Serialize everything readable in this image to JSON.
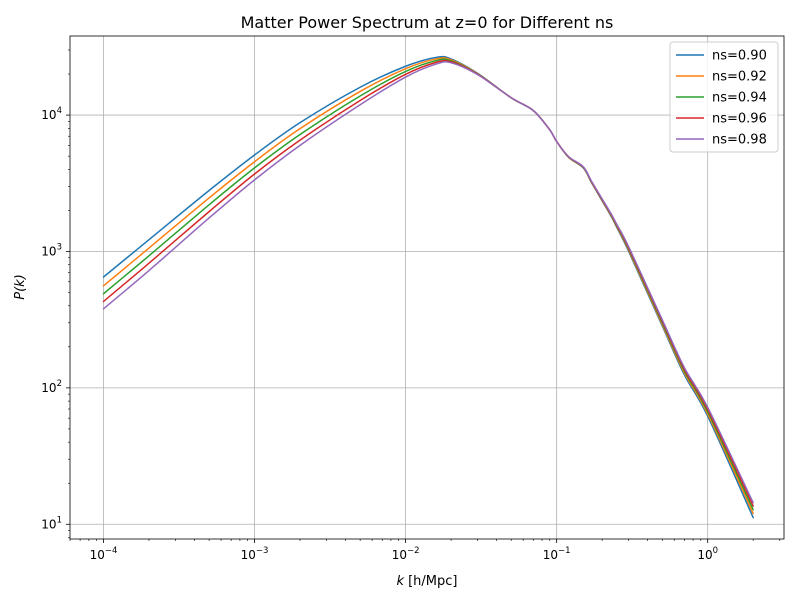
{
  "chart_data": {
    "type": "line",
    "title": "Matter Power Spectrum at z=0 for Different ns",
    "xlabel_italic": "k",
    "xlabel_rest": "[h/Mpc]",
    "ylabel": "P(k)",
    "xscale": "log",
    "yscale": "log",
    "xlim": [
      6e-05,
      3.2
    ],
    "ylim": [
      7.8,
      38000
    ],
    "grid": true,
    "legend_position": "top-right",
    "x_ticks": [
      {
        "value": 0.0001,
        "base": "10",
        "exp": "−4"
      },
      {
        "value": 0.001,
        "base": "10",
        "exp": "−3"
      },
      {
        "value": 0.01,
        "base": "10",
        "exp": "−2"
      },
      {
        "value": 0.1,
        "base": "10",
        "exp": "−1"
      },
      {
        "value": 1,
        "base": "10",
        "exp": "0"
      }
    ],
    "y_ticks": [
      {
        "value": 10,
        "base": "10",
        "exp": "1"
      },
      {
        "value": 100,
        "base": "10",
        "exp": "2"
      },
      {
        "value": 1000,
        "base": "10",
        "exp": "3"
      },
      {
        "value": 10000,
        "base": "10",
        "exp": "4"
      }
    ],
    "x": [
      0.0001,
      0.0002,
      0.0005,
      0.001,
      0.002,
      0.005,
      0.01,
      0.016,
      0.02,
      0.03,
      0.05,
      0.07,
      0.09,
      0.1,
      0.12,
      0.15,
      0.17,
      0.2,
      0.23,
      0.25,
      0.3,
      0.5,
      0.7,
      1.0,
      2.0
    ],
    "series": [
      {
        "name": "ns=0.90",
        "color": "#1f77b4",
        "values": [
          650,
          1220,
          2800,
          5100,
          8800,
          16000,
          22800,
          26500,
          25800,
          20200,
          13400,
          10800,
          7800,
          6400,
          4900,
          4100,
          3200,
          2350,
          1800,
          1500,
          1000,
          285,
          125,
          62,
          11.2
        ]
      },
      {
        "name": "ns=0.92",
        "color": "#ff7f0e",
        "values": [
          560,
          1060,
          2470,
          4550,
          7950,
          14900,
          21900,
          25800,
          25400,
          20100,
          13400,
          10800,
          7800,
          6400,
          4900,
          4120,
          3220,
          2370,
          1820,
          1520,
          1020,
          292,
          129,
          64.5,
          12.0
        ]
      },
      {
        "name": "ns=0.94",
        "color": "#2ca02c",
        "values": [
          490,
          930,
          2200,
          4100,
          7200,
          13800,
          20900,
          25100,
          25000,
          20000,
          13400,
          10800,
          7800,
          6400,
          4920,
          4140,
          3240,
          2390,
          1840,
          1540,
          1040,
          300,
          133,
          67,
          12.8
        ]
      },
      {
        "name": "ns=0.96",
        "color": "#d62728",
        "values": [
          430,
          820,
          1960,
          3700,
          6550,
          12800,
          19900,
          24400,
          24600,
          19900,
          13400,
          10800,
          7800,
          6400,
          4940,
          4160,
          3260,
          2410,
          1860,
          1560,
          1060,
          308,
          137,
          69.5,
          13.6
        ]
      },
      {
        "name": "ns=0.98",
        "color": "#9467bd",
        "values": [
          380,
          725,
          1760,
          3350,
          6000,
          11900,
          19000,
          23700,
          24200,
          19800,
          13400,
          10800,
          7800,
          6400,
          4960,
          4180,
          3280,
          2430,
          1880,
          1580,
          1080,
          316,
          141,
          72,
          14.4
        ]
      }
    ]
  }
}
